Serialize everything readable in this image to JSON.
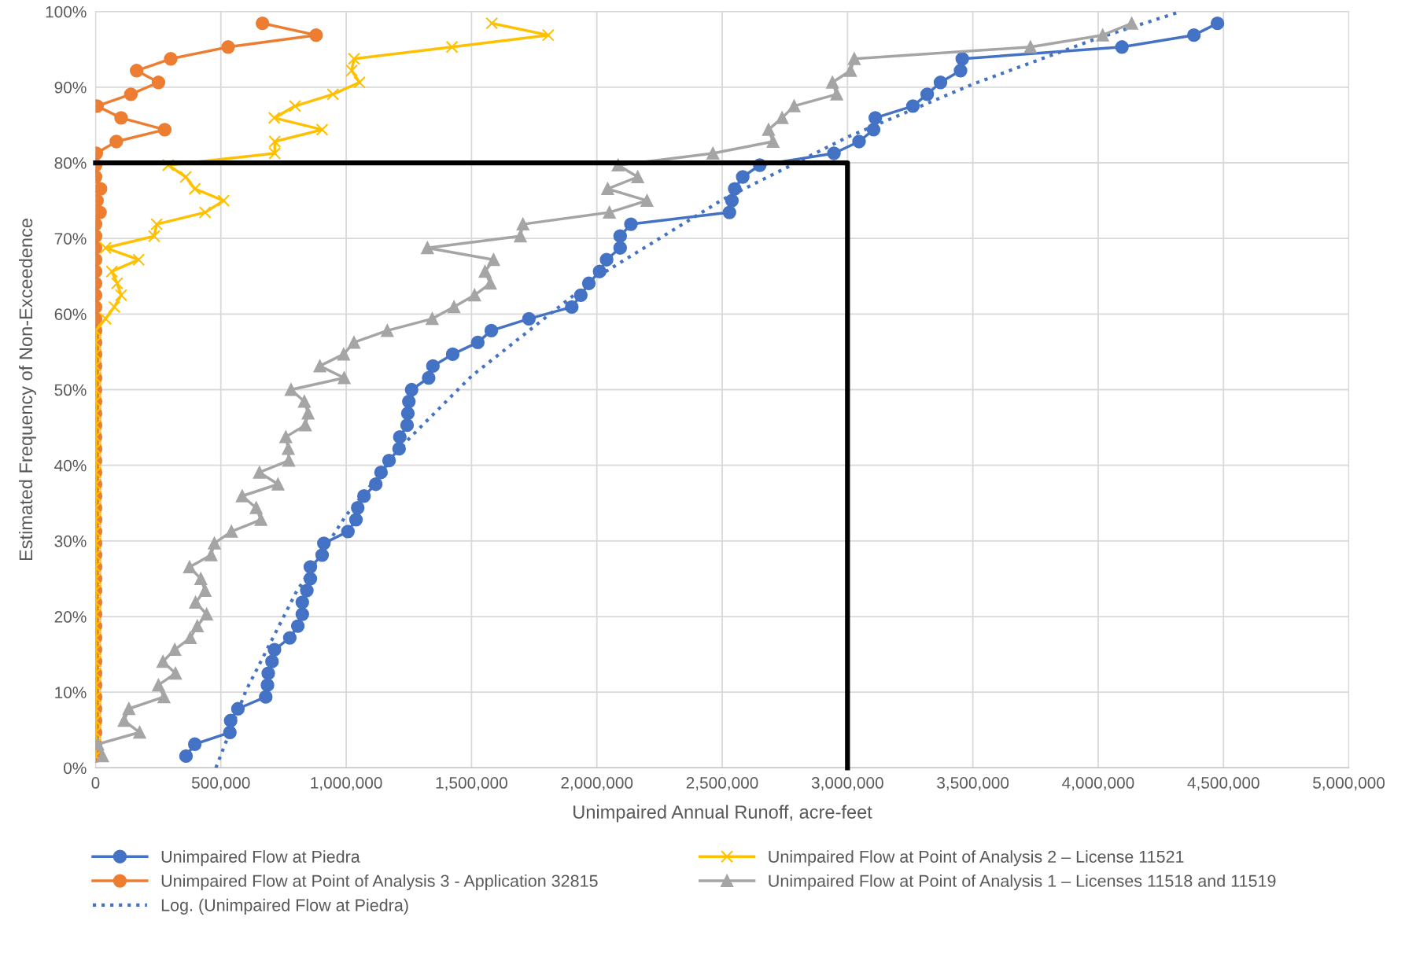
{
  "chart_data": {
    "type": "line",
    "xlabel": "Unimpaired Annual Runoff, acre-feet",
    "ylabel": "Estimated Frequency of Non-Exceedence",
    "xlim": [
      0,
      5000000
    ],
    "xticks": [
      {
        "value": 0,
        "label": "0"
      },
      {
        "value": 500000,
        "label": "500,000"
      },
      {
        "value": 1000000,
        "label": "1,000,000"
      },
      {
        "value": 1500000,
        "label": "1,500,000"
      },
      {
        "value": 2000000,
        "label": "2,000,000"
      },
      {
        "value": 2500000,
        "label": "2,500,000"
      },
      {
        "value": 3000000,
        "label": "3,000,000"
      },
      {
        "value": 3500000,
        "label": "3,500,000"
      },
      {
        "value": 4000000,
        "label": "4,000,000"
      },
      {
        "value": 4500000,
        "label": "4,500,000"
      },
      {
        "value": 5000000,
        "label": "5,000,000"
      }
    ],
    "ylim": [
      0,
      100
    ],
    "yticks": [
      {
        "value": 0,
        "label": "0%"
      },
      {
        "value": 10,
        "label": "10%"
      },
      {
        "value": 20,
        "label": "20%"
      },
      {
        "value": 30,
        "label": "30%"
      },
      {
        "value": 40,
        "label": "40%"
      },
      {
        "value": 50,
        "label": "50%"
      },
      {
        "value": 60,
        "label": "60%"
      },
      {
        "value": 70,
        "label": "70%"
      },
      {
        "value": 80,
        "label": "80%"
      },
      {
        "value": 90,
        "label": "90%"
      },
      {
        "value": 100,
        "label": "100%"
      }
    ],
    "grid": true,
    "legend": "bottom",
    "series": [
      {
        "name": "Unimpaired Flow at Piedra",
        "color": "#4472c4",
        "marker": "circle",
        "line_style": "solid",
        "x": [
          361000,
          396000,
          536000,
          539000,
          568000,
          679000,
          686000,
          689000,
          704000,
          714000,
          775000,
          807000,
          825000,
          825000,
          843000,
          857000,
          857000,
          904000,
          911000,
          1007000,
          1039000,
          1046000,
          1071000,
          1118000,
          1139000,
          1171000,
          1211000,
          1214000,
          1243000,
          1246000,
          1250000,
          1261000,
          1329000,
          1346000,
          1425000,
          1525000,
          1579000,
          1729000,
          1900000,
          1936000,
          1968000,
          2011000,
          2039000,
          2093000,
          2093000,
          2136000,
          2529000,
          2539000,
          2550000,
          2582000,
          2650000,
          2946000,
          3046000,
          3104000,
          3111000,
          3261000,
          3318000,
          3371000,
          3451000,
          3458000,
          4095000,
          4382000,
          4476000
        ],
        "values": [
          1.56,
          3.13,
          4.69,
          6.25,
          7.81,
          9.38,
          10.94,
          12.5,
          14.06,
          15.63,
          17.19,
          18.75,
          20.31,
          21.88,
          23.44,
          25,
          26.56,
          28.13,
          29.69,
          31.25,
          32.81,
          34.38,
          35.94,
          37.5,
          39.06,
          40.63,
          42.19,
          43.75,
          45.31,
          46.88,
          48.44,
          50,
          51.56,
          53.13,
          54.69,
          56.25,
          57.81,
          59.38,
          60.94,
          62.5,
          64.06,
          65.63,
          67.19,
          68.75,
          70.31,
          71.88,
          73.44,
          75,
          76.56,
          78.13,
          79.69,
          81.25,
          82.81,
          84.38,
          85.94,
          87.5,
          89.06,
          90.63,
          92.19,
          93.75,
          95.31,
          96.88,
          98.44
        ]
      },
      {
        "name": "Unimpaired Flow at Point of Analysis 3 - Application 32815",
        "color": "#ed7d31",
        "marker": "circle",
        "line_style": "solid",
        "x": [
          0,
          0,
          0,
          0,
          0,
          0,
          0,
          0,
          0,
          0,
          0,
          0,
          0,
          0,
          0,
          0,
          0,
          0,
          0,
          0,
          0,
          0,
          0,
          0,
          0,
          0,
          0,
          0,
          0,
          0,
          0,
          0,
          0,
          0,
          0,
          0,
          0,
          0,
          0,
          0,
          0,
          0,
          0,
          0,
          0,
          0,
          18000,
          6000,
          20000,
          0,
          0,
          3000,
          83000,
          276000,
          102000,
          6000,
          141000,
          251000,
          164000,
          300000,
          529000,
          880000,
          666000
        ],
        "values": [
          1.56,
          3.13,
          4.69,
          6.25,
          7.81,
          9.38,
          10.94,
          12.5,
          14.06,
          15.63,
          17.19,
          18.75,
          20.31,
          21.88,
          23.44,
          25,
          26.56,
          28.13,
          29.69,
          31.25,
          32.81,
          34.38,
          35.94,
          37.5,
          39.06,
          40.63,
          42.19,
          43.75,
          45.31,
          46.88,
          48.44,
          50,
          51.56,
          53.13,
          54.69,
          56.25,
          57.81,
          59.38,
          60.94,
          62.5,
          64.06,
          65.63,
          67.19,
          68.75,
          70.31,
          71.88,
          73.44,
          75,
          76.56,
          78.13,
          79.69,
          81.25,
          82.81,
          84.38,
          85.94,
          87.5,
          89.06,
          90.63,
          92.19,
          93.75,
          95.31,
          96.88,
          98.44
        ]
      },
      {
        "name": "Log. (Unimpaired Flow at Piedra)",
        "color": "#4472c4",
        "marker": "none",
        "line_style": "dotted",
        "x": [
          480000,
          600000,
          800000,
          1000000,
          1250000,
          1500000,
          2000000,
          2500000,
          3000000,
          3500000,
          4000000,
          4330000
        ],
        "values": [
          0,
          10.2,
          23.2,
          33.4,
          43.5,
          51.8,
          64.9,
          75.1,
          83.4,
          90.4,
          96.5,
          100
        ]
      },
      {
        "name": "Unimpaired Flow at Point of Analysis 2 – License 11521",
        "color": "#ffc000",
        "marker": "cross",
        "line_style": "solid",
        "x": [
          0,
          0,
          0,
          0,
          0,
          0,
          0,
          0,
          0,
          0,
          0,
          0,
          0,
          0,
          0,
          0,
          0,
          0,
          0,
          0,
          0,
          0,
          0,
          0,
          0,
          0,
          0,
          0,
          0,
          0,
          0,
          0,
          0,
          0,
          0,
          0,
          0,
          40000,
          75000,
          102000,
          86000,
          65000,
          172000,
          40000,
          234000,
          244000,
          437000,
          511000,
          396000,
          360000,
          290000,
          715000,
          715000,
          904000,
          713000,
          796000,
          947000,
          1053000,
          1022000,
          1031000,
          1422000,
          1806000,
          1581000
        ],
        "values": [
          1.56,
          3.13,
          4.69,
          6.25,
          7.81,
          9.38,
          10.94,
          12.5,
          14.06,
          15.63,
          17.19,
          18.75,
          20.31,
          21.88,
          23.44,
          25,
          26.56,
          28.13,
          29.69,
          31.25,
          32.81,
          34.38,
          35.94,
          37.5,
          39.06,
          40.63,
          42.19,
          43.75,
          45.31,
          46.88,
          48.44,
          50,
          51.56,
          53.13,
          54.69,
          56.25,
          57.81,
          59.38,
          60.94,
          62.5,
          64.06,
          65.63,
          67.19,
          68.75,
          70.31,
          71.88,
          73.44,
          75,
          76.56,
          78.13,
          79.69,
          81.25,
          82.81,
          84.38,
          85.94,
          87.5,
          89.06,
          90.63,
          92.19,
          93.75,
          95.31,
          96.88,
          98.44
        ]
      },
      {
        "name": "Unimpaired Flow at Point of Analysis 1 – Licenses 11518 and 11519",
        "color": "#a5a5a5",
        "marker": "triangle",
        "line_style": "solid",
        "x": [
          28000,
          9000,
          176000,
          114000,
          133000,
          273000,
          251000,
          319000,
          269000,
          316000,
          378000,
          406000,
          443000,
          399000,
          437000,
          420000,
          375000,
          461000,
          474000,
          542000,
          660000,
          641000,
          585000,
          728000,
          654000,
          771000,
          769000,
          759000,
          837000,
          848000,
          833000,
          780000,
          992000,
          895000,
          990000,
          1031000,
          1164000,
          1343000,
          1430000,
          1512000,
          1575000,
          1554000,
          1588000,
          1324000,
          1695000,
          1705000,
          2050000,
          2200000,
          2043000,
          2163000,
          2085000,
          2463000,
          2703000,
          2685000,
          2739000,
          2787000,
          2957000,
          2940000,
          3012000,
          3027000,
          3730000,
          4018000,
          4134000
        ],
        "values": [
          1.56,
          3.13,
          4.69,
          6.25,
          7.81,
          9.38,
          10.94,
          12.5,
          14.06,
          15.63,
          17.19,
          18.75,
          20.31,
          21.88,
          23.44,
          25,
          26.56,
          28.13,
          29.69,
          31.25,
          32.81,
          34.38,
          35.94,
          37.5,
          39.06,
          40.63,
          42.19,
          43.75,
          45.31,
          46.88,
          48.44,
          50,
          51.56,
          53.13,
          54.69,
          56.25,
          57.81,
          59.38,
          60.94,
          62.5,
          64.06,
          65.63,
          67.19,
          68.75,
          70.31,
          71.88,
          73.44,
          75,
          76.56,
          78.13,
          79.69,
          81.25,
          82.81,
          84.38,
          85.94,
          87.5,
          89.06,
          90.63,
          92.19,
          93.75,
          95.31,
          96.88,
          98.44
        ]
      },
      {
        "color": "#000000",
        "marker": "none",
        "line_style": "solid",
        "x": [
          0,
          3000000,
          3000000
        ],
        "values": [
          80,
          80,
          0
        ]
      }
    ]
  }
}
